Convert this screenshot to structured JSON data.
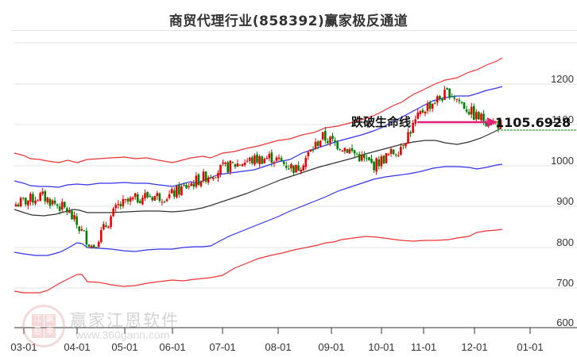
{
  "title": "商贸代理行业(858392)赢家极反通道",
  "watermark": {
    "brand": "赢家江恩软件",
    "url": "www.360gann.com",
    "logo_chars": [
      "江",
      "赢",
      "恩",
      "家"
    ]
  },
  "annotation": {
    "label": "跌破生命线",
    "price_label": "1105.6928",
    "arrow_color": "#e0207a"
  },
  "colors": {
    "up_candle": "#ee0000",
    "down_candle": "#008000",
    "outer_band": "#ee2222",
    "inner_band": "#2222ee",
    "life_line": "#222222",
    "grid": "#e0e0e0",
    "price_line": "#008000"
  },
  "chart_data": {
    "type": "candlestick",
    "title": "商贸代理行业(858392)赢家极反通道",
    "xlabel": "",
    "ylabel": "",
    "ylim": [
      600,
      1300
    ],
    "grid": true,
    "y_ticks": [
      600,
      700,
      800,
      900,
      1000,
      1100,
      1200
    ],
    "x_ticks": [
      "03-01",
      "04-01",
      "05-01",
      "06-01",
      "07-01",
      "08-01",
      "09-01",
      "10-01",
      "11-01",
      "12-01",
      "01-01"
    ],
    "legend": [],
    "series": [
      {
        "name": "upper outer band (red)",
        "x": [
          "03-01",
          "03-15",
          "04-01",
          "04-15",
          "05-01",
          "05-15",
          "06-01",
          "06-15",
          "07-01",
          "07-15",
          "08-01",
          "08-15",
          "09-01",
          "09-15",
          "10-01",
          "10-15",
          "11-01",
          "11-15",
          "12-01",
          "12-15"
        ],
        "values": [
          1040,
          1025,
          1010,
          1020,
          1020,
          1025,
          1025,
          1045,
          1060,
          1065,
          1075,
          1080,
          1085,
          1100,
          1120,
          1150,
          1200,
          1230,
          1250,
          1265
        ]
      },
      {
        "name": "upper inner band (blue)",
        "x": [
          "03-01",
          "03-15",
          "04-01",
          "04-15",
          "05-01",
          "05-15",
          "06-01",
          "06-15",
          "07-01",
          "07-15",
          "08-01",
          "08-15",
          "09-01",
          "09-15",
          "10-01",
          "10-15",
          "11-01",
          "11-15",
          "12-01",
          "12-15"
        ],
        "values": [
          965,
          950,
          945,
          950,
          950,
          950,
          950,
          960,
          975,
          985,
          1000,
          1020,
          1040,
          1060,
          1075,
          1090,
          1120,
          1145,
          1165,
          1190
        ]
      },
      {
        "name": "life line (black)",
        "x": [
          "03-01",
          "03-15",
          "04-01",
          "04-15",
          "05-01",
          "05-15",
          "06-01",
          "06-15",
          "07-01",
          "07-15",
          "08-01",
          "08-15",
          "09-01",
          "09-15",
          "10-01",
          "10-15",
          "11-01",
          "11-15",
          "12-01",
          "12-15"
        ],
        "values": [
          888,
          880,
          890,
          880,
          880,
          882,
          885,
          895,
          920,
          945,
          970,
          990,
          1010,
          1030,
          1040,
          1055,
          1070,
          1080,
          1090,
          1105
        ]
      },
      {
        "name": "lower inner band (blue)",
        "x": [
          "03-01",
          "03-15",
          "04-01",
          "04-15",
          "05-01",
          "05-15",
          "06-01",
          "06-15",
          "07-01",
          "07-15",
          "08-01",
          "08-15",
          "09-01",
          "09-15",
          "10-01",
          "10-15",
          "11-01",
          "11-15",
          "12-01",
          "12-15"
        ],
        "values": [
          790,
          778,
          795,
          785,
          785,
          788,
          790,
          800,
          830,
          880,
          920,
          945,
          965,
          985,
          975,
          975,
          975,
          978,
          980,
          992
        ]
      },
      {
        "name": "lower outer band (red)",
        "x": [
          "03-01",
          "03-15",
          "04-01",
          "04-15",
          "05-01",
          "05-15",
          "06-01",
          "06-15",
          "07-01",
          "07-15",
          "08-01",
          "08-15",
          "09-01",
          "09-15",
          "10-01",
          "10-15",
          "11-01",
          "11-15",
          "12-01",
          "12-15"
        ],
        "values": [
          690,
          682,
          720,
          700,
          695,
          700,
          705,
          720,
          765,
          800,
          830,
          850,
          860,
          865,
          853,
          858,
          857,
          868,
          875,
          890
        ]
      },
      {
        "name": "close (candles, approx)",
        "x": [
          "03-01",
          "03-15",
          "04-01",
          "04-15",
          "05-01",
          "05-15",
          "06-01",
          "06-15",
          "07-01",
          "07-15",
          "08-01",
          "08-15",
          "09-01",
          "09-15",
          "10-01",
          "10-15",
          "11-01",
          "11-15",
          "12-01",
          "12-15"
        ],
        "values": [
          905,
          925,
          890,
          800,
          900,
          925,
          925,
          960,
          990,
          1010,
          1020,
          990,
          1070,
          1040,
          1000,
          1040,
          1140,
          1180,
          1120,
          1100
        ]
      }
    ],
    "annotations": [
      {
        "text": "跌破生命线",
        "type": "arrow",
        "target_value": 1105.6928
      },
      {
        "text": "1105.6928",
        "type": "price_label"
      }
    ]
  }
}
